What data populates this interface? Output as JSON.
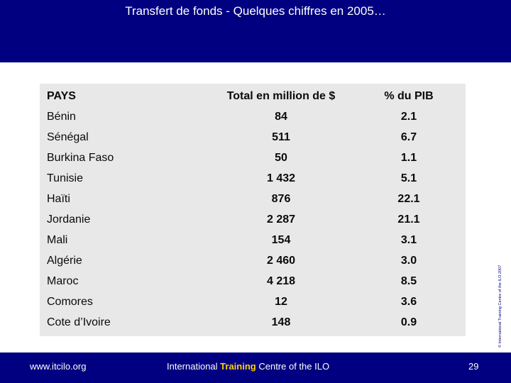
{
  "slide": {
    "title": "Transfert de fonds - Quelques chiffres en 2005…",
    "side_note": "© International Training Centre of the ILO 2007",
    "colors": {
      "header": "#000080",
      "footer": "#000080",
      "panel": "#e8e8e8",
      "highlight": "#ffd200"
    }
  },
  "table": {
    "headers": {
      "country": "PAYS",
      "total": "Total en million de $",
      "pib": "% du PIB"
    },
    "rows": [
      {
        "country": "Bénin",
        "total": "84",
        "pib": "2.1"
      },
      {
        "country": "Sénégal",
        "total": "511",
        "pib": "6.7"
      },
      {
        "country": "Burkina Faso",
        "total": "50",
        "pib": "1.1"
      },
      {
        "country": "Tunisie",
        "total": "1 432",
        "pib": "5.1"
      },
      {
        "country": "Haïti",
        "total": "876",
        "pib": "22.1"
      },
      {
        "country": "Jordanie",
        "total": "2 287",
        "pib": "21.1"
      },
      {
        "country": "Mali",
        "total": "154",
        "pib": "3.1"
      },
      {
        "country": "Algérie",
        "total": "2 460",
        "pib": "3.0"
      },
      {
        "country": "Maroc",
        "total": "4 218",
        "pib": "8.5"
      },
      {
        "country": "Comores",
        "total": "12",
        "pib": "3.6"
      },
      {
        "country": "Cote d’Ivoire",
        "total": "148",
        "pib": "0.9"
      }
    ]
  },
  "footer": {
    "website": "www.itcilo.org",
    "org_prefix": "International ",
    "org_highlight": "Training",
    "org_suffix": " Centre of the ILO",
    "page_number": "29"
  }
}
